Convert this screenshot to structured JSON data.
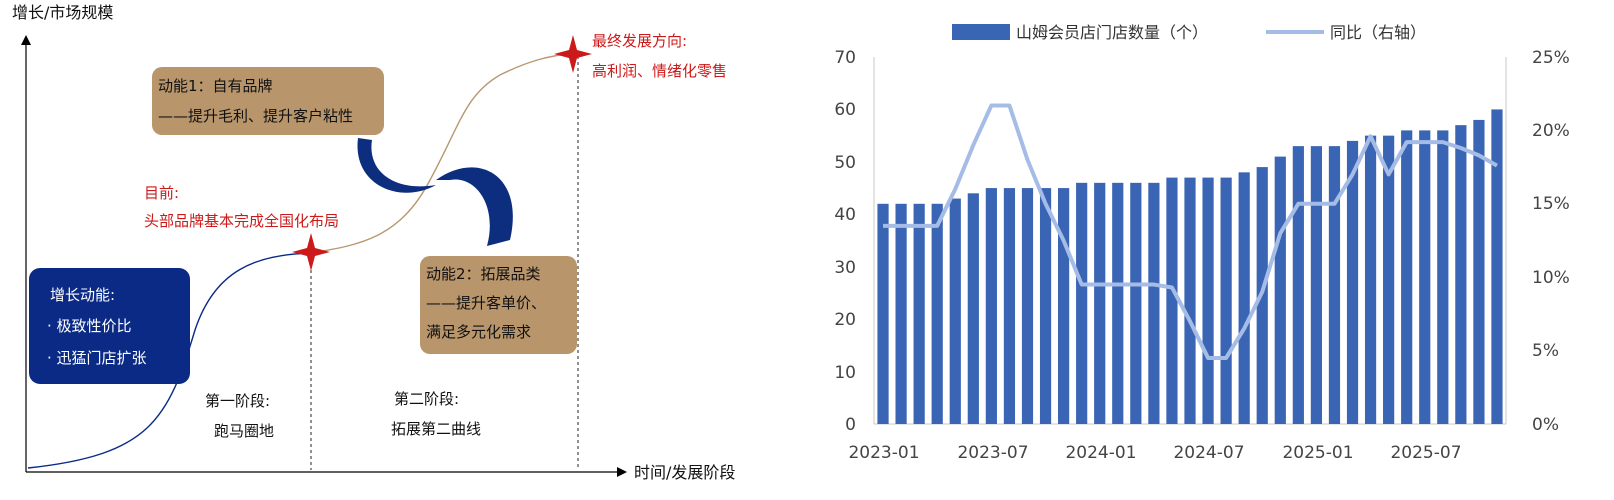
{
  "diagram": {
    "y_axis_label": "增长/市场规模",
    "x_axis_label": "时间/发展阶段",
    "box_growth": {
      "title": "增长动能:",
      "items": [
        "· 极致性价比",
        "· 迅猛门店扩张"
      ]
    },
    "box_driver1": {
      "title": "动能1：自有品牌",
      "line2": "——提升毛利、提升客户粘性"
    },
    "box_driver2": {
      "title": "动能2：拓展品类",
      "line2": "——提升客单价、",
      "line3": "满足多元化需求"
    },
    "current": {
      "title": "目前:",
      "text": "头部品牌基本完成全国化布局"
    },
    "final": {
      "title": "最终发展方向:",
      "text": "高利润、情绪化零售"
    },
    "stage1": {
      "title": "第一阶段:",
      "text": "跑马圈地"
    },
    "stage2": {
      "title": "第二阶段:",
      "text": "拓展第二曲线"
    },
    "colors": {
      "navy": "#0a2a85",
      "gold": "#b8956b",
      "red": "#cc1a1a",
      "tan_curve": "#b89870"
    }
  },
  "chart_data": {
    "type": "bar",
    "legend": {
      "bar_label": "山姆会员店门店数量（个）",
      "line_label": "同比（右轴）",
      "position": "top"
    },
    "x_tick_labels": [
      "2023-01",
      "2023-07",
      "2024-01",
      "2024-07",
      "2025-01",
      "2025-07"
    ],
    "y_left": {
      "ticks": [
        "0",
        "10",
        "20",
        "30",
        "40",
        "50",
        "60",
        "70"
      ],
      "min": 0,
      "max": 70
    },
    "y_right": {
      "ticks": [
        "0%",
        "5%",
        "10%",
        "15%",
        "20%",
        "25%"
      ],
      "min": 0,
      "max": 25
    },
    "series": [
      {
        "name": "山姆会员店门店数量（个）",
        "type": "bar",
        "color": "#3a64b4",
        "values": [
          42,
          42,
          42,
          42,
          43,
          44,
          45,
          45,
          45,
          45,
          45,
          46,
          46,
          46,
          46,
          46,
          47,
          47,
          47,
          47,
          48,
          49,
          51,
          53,
          53,
          53,
          54,
          55,
          55,
          56,
          56,
          56,
          57,
          58,
          60
        ]
      },
      {
        "name": "同比（右轴）",
        "type": "line",
        "axis": "right",
        "color": "#a5bde6",
        "values": [
          13.5,
          13.5,
          13.5,
          13.5,
          16,
          19,
          21.7,
          21.7,
          18,
          15,
          12.5,
          9.5,
          9.5,
          9.5,
          9.5,
          9.5,
          9.3,
          7,
          4.5,
          4.5,
          6.5,
          9,
          13,
          15,
          15,
          15,
          17,
          19.6,
          17,
          19.2,
          19.2,
          19.2,
          18.8,
          18.3,
          17.6
        ]
      }
    ]
  }
}
